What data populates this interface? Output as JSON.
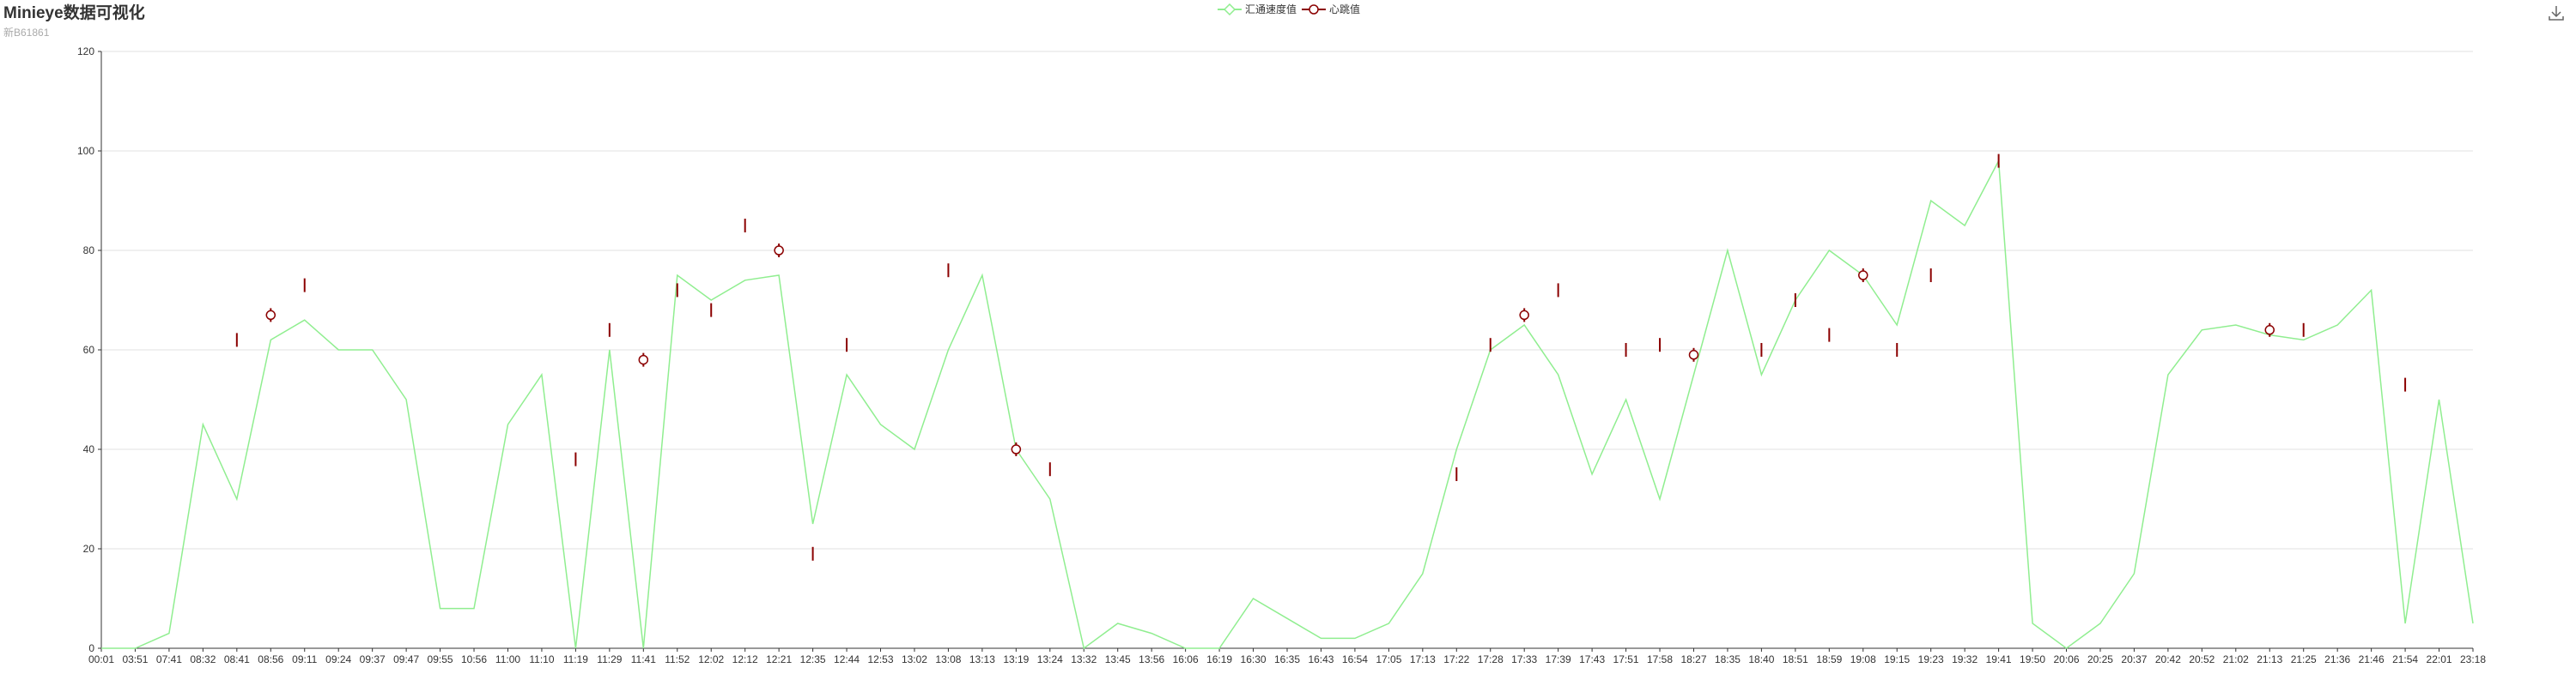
{
  "title": "Minieye数据可视化",
  "subtitle": "新B61861",
  "legend": {
    "items": [
      {
        "label": "汇通速度值",
        "color": "#90ee90",
        "marker": "diamond"
      },
      {
        "label": "心跳值",
        "color": "#8b0000",
        "marker": "circle"
      }
    ]
  },
  "icons": {
    "download": "download-icon"
  },
  "chart_data": {
    "type": "line",
    "title": "Minieye数据可视化",
    "subtitle": "新B61861",
    "ylim": [
      0,
      120
    ],
    "yticks": [
      0,
      20,
      40,
      60,
      80,
      100,
      120
    ],
    "grid": true,
    "legend_position": "top-center",
    "categories": [
      "00:01",
      "03:51",
      "07:41",
      "08:32",
      "08:41",
      "08:56",
      "09:11",
      "09:24",
      "09:37",
      "09:47",
      "09:55",
      "10:56",
      "11:00",
      "11:10",
      "11:19",
      "11:29",
      "11:41",
      "11:52",
      "12:02",
      "12:12",
      "12:21",
      "12:35",
      "12:44",
      "12:53",
      "13:02",
      "13:08",
      "13:13",
      "13:19",
      "13:24",
      "13:32",
      "13:45",
      "13:56",
      "16:06",
      "16:19",
      "16:30",
      "16:35",
      "16:43",
      "16:54",
      "17:05",
      "17:13",
      "17:22",
      "17:28",
      "17:33",
      "17:39",
      "17:43",
      "17:51",
      "17:58",
      "18:27",
      "18:35",
      "18:40",
      "18:51",
      "18:59",
      "19:08",
      "19:15",
      "19:23",
      "19:32",
      "19:41",
      "19:50",
      "20:06",
      "20:25",
      "20:37",
      "20:42",
      "20:52",
      "21:02",
      "21:13",
      "21:25",
      "21:36",
      "21:46",
      "21:54",
      "22:01",
      "23:18"
    ],
    "series": [
      {
        "name": "汇通速度值",
        "color": "#90ee90",
        "values": [
          0,
          0,
          3,
          45,
          30,
          62,
          66,
          60,
          60,
          50,
          8,
          8,
          45,
          55,
          0,
          60,
          0,
          75,
          70,
          74,
          75,
          25,
          55,
          45,
          40,
          60,
          75,
          40,
          30,
          0,
          5,
          3,
          0,
          0,
          10,
          6,
          2,
          2,
          5,
          15,
          40,
          60,
          65,
          55,
          35,
          50,
          30,
          55,
          80,
          55,
          70,
          80,
          75,
          65,
          90,
          85,
          98,
          5,
          0,
          5,
          15,
          55,
          64,
          65,
          63,
          62,
          65,
          72,
          5,
          50,
          5
        ]
      },
      {
        "name": "心跳值",
        "color": "#8b0000",
        "points": [
          {
            "x": "08:41",
            "y": 62
          },
          {
            "x": "08:56",
            "y": 67
          },
          {
            "x": "09:11",
            "y": 73
          },
          {
            "x": "11:19",
            "y": 38
          },
          {
            "x": "11:29",
            "y": 64
          },
          {
            "x": "11:41",
            "y": 58
          },
          {
            "x": "11:52",
            "y": 72
          },
          {
            "x": "12:02",
            "y": 68
          },
          {
            "x": "12:12",
            "y": 85
          },
          {
            "x": "12:21",
            "y": 80
          },
          {
            "x": "12:35",
            "y": 19
          },
          {
            "x": "12:44",
            "y": 61
          },
          {
            "x": "13:08",
            "y": 76
          },
          {
            "x": "13:19",
            "y": 40
          },
          {
            "x": "13:24",
            "y": 36
          },
          {
            "x": "17:22",
            "y": 35
          },
          {
            "x": "17:28",
            "y": 61
          },
          {
            "x": "17:33",
            "y": 67
          },
          {
            "x": "17:39",
            "y": 72
          },
          {
            "x": "17:51",
            "y": 60
          },
          {
            "x": "17:58",
            "y": 61
          },
          {
            "x": "18:27",
            "y": 59
          },
          {
            "x": "18:40",
            "y": 60
          },
          {
            "x": "18:51",
            "y": 70
          },
          {
            "x": "18:59",
            "y": 63
          },
          {
            "x": "19:08",
            "y": 75
          },
          {
            "x": "19:15",
            "y": 60
          },
          {
            "x": "19:23",
            "y": 75
          },
          {
            "x": "19:41",
            "y": 98
          },
          {
            "x": "21:13",
            "y": 64
          },
          {
            "x": "21:25",
            "y": 64
          },
          {
            "x": "21:54",
            "y": 53
          }
        ]
      }
    ]
  }
}
